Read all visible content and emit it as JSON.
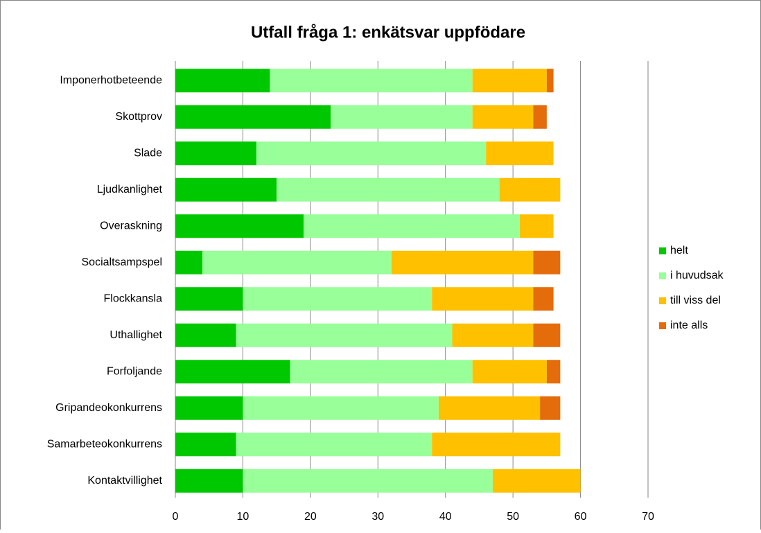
{
  "chart_data": {
    "type": "stacked-bar-horizontal",
    "title": "Utfall fråga 1: enkätsvar uppfödare",
    "categories": [
      "Imponerhotbeteende",
      "Skottprov",
      "Slade",
      "Ljudkanlighet",
      "Overaskning",
      "Socialtsampspel",
      "Flockkansla",
      "Uthallighet",
      "Forfoljande",
      "Gripandeokonkurrens",
      "Samarbeteokonkurrens",
      "Kontaktvillighet"
    ],
    "series": [
      {
        "name": "helt",
        "color": "#00c800",
        "values": [
          14,
          23,
          12,
          15,
          19,
          4,
          10,
          9,
          17,
          10,
          9,
          10
        ]
      },
      {
        "name": "i huvudsak",
        "color": "#99ff99",
        "values": [
          30,
          21,
          34,
          33,
          32,
          28,
          28,
          32,
          27,
          29,
          29,
          37
        ]
      },
      {
        "name": "till viss del",
        "color": "#ffc000",
        "values": [
          11,
          9,
          10,
          9,
          5,
          21,
          15,
          12,
          11,
          15,
          19,
          13
        ]
      },
      {
        "name": "inte alls",
        "color": "#e46c0a",
        "values": [
          1,
          2,
          0,
          0,
          0,
          4,
          3,
          4,
          2,
          3,
          0,
          0
        ]
      }
    ],
    "xlim": [
      0,
      70
    ],
    "xticks": [
      0,
      10,
      20,
      30,
      40,
      50,
      60,
      70
    ],
    "grid": true,
    "legend": "right"
  }
}
